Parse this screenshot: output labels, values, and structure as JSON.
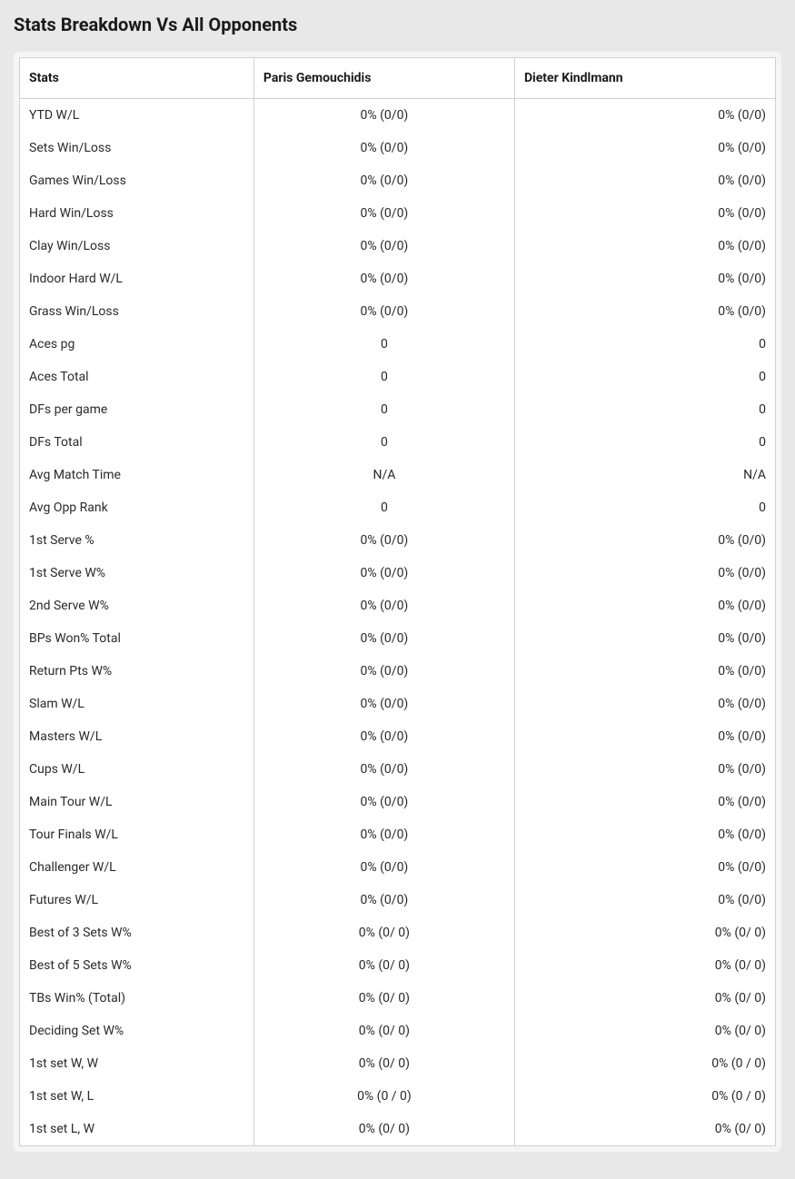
{
  "title": "Stats Breakdown Vs All Opponents",
  "columns": [
    "Stats",
    "Paris Gemouchidis",
    "Dieter Kindlmann"
  ],
  "rows": [
    {
      "stat": "YTD W/L",
      "p1": "0% (0/0)",
      "p2": "0% (0/0)"
    },
    {
      "stat": "Sets Win/Loss",
      "p1": "0% (0/0)",
      "p2": "0% (0/0)"
    },
    {
      "stat": "Games Win/Loss",
      "p1": "0% (0/0)",
      "p2": "0% (0/0)"
    },
    {
      "stat": "Hard Win/Loss",
      "p1": "0% (0/0)",
      "p2": "0% (0/0)"
    },
    {
      "stat": "Clay Win/Loss",
      "p1": "0% (0/0)",
      "p2": "0% (0/0)"
    },
    {
      "stat": "Indoor Hard W/L",
      "p1": "0% (0/0)",
      "p2": "0% (0/0)"
    },
    {
      "stat": "Grass Win/Loss",
      "p1": "0% (0/0)",
      "p2": "0% (0/0)"
    },
    {
      "stat": "Aces pg",
      "p1": "0",
      "p2": "0"
    },
    {
      "stat": "Aces Total",
      "p1": "0",
      "p2": "0"
    },
    {
      "stat": "DFs per game",
      "p1": "0",
      "p2": "0"
    },
    {
      "stat": "DFs Total",
      "p1": "0",
      "p2": "0"
    },
    {
      "stat": "Avg Match Time",
      "p1": "N/A",
      "p2": "N/A"
    },
    {
      "stat": "Avg Opp Rank",
      "p1": "0",
      "p2": "0"
    },
    {
      "stat": "1st Serve %",
      "p1": "0% (0/0)",
      "p2": "0% (0/0)"
    },
    {
      "stat": "1st Serve W%",
      "p1": "0% (0/0)",
      "p2": "0% (0/0)"
    },
    {
      "stat": "2nd Serve W%",
      "p1": "0% (0/0)",
      "p2": "0% (0/0)"
    },
    {
      "stat": "BPs Won% Total",
      "p1": "0% (0/0)",
      "p2": "0% (0/0)"
    },
    {
      "stat": "Return Pts W%",
      "p1": "0% (0/0)",
      "p2": "0% (0/0)"
    },
    {
      "stat": "Slam W/L",
      "p1": "0% (0/0)",
      "p2": "0% (0/0)"
    },
    {
      "stat": "Masters W/L",
      "p1": "0% (0/0)",
      "p2": "0% (0/0)"
    },
    {
      "stat": "Cups W/L",
      "p1": "0% (0/0)",
      "p2": "0% (0/0)"
    },
    {
      "stat": "Main Tour W/L",
      "p1": "0% (0/0)",
      "p2": "0% (0/0)"
    },
    {
      "stat": "Tour Finals W/L",
      "p1": "0% (0/0)",
      "p2": "0% (0/0)"
    },
    {
      "stat": "Challenger W/L",
      "p1": "0% (0/0)",
      "p2": "0% (0/0)"
    },
    {
      "stat": "Futures W/L",
      "p1": "0% (0/0)",
      "p2": "0% (0/0)"
    },
    {
      "stat": "Best of 3 Sets W%",
      "p1": "0% (0/ 0)",
      "p2": "0% (0/ 0)"
    },
    {
      "stat": "Best of 5 Sets W%",
      "p1": "0% (0/ 0)",
      "p2": "0% (0/ 0)"
    },
    {
      "stat": "TBs Win% (Total)",
      "p1": "0% (0/ 0)",
      "p2": "0% (0/ 0)"
    },
    {
      "stat": "Deciding Set W%",
      "p1": "0% (0/ 0)",
      "p2": "0% (0/ 0)"
    },
    {
      "stat": "1st set W, W",
      "p1": "0% (0/ 0)",
      "p2": "0% (0 / 0)"
    },
    {
      "stat": "1st set W, L",
      "p1": "0% (0 / 0)",
      "p2": "0% (0 / 0)"
    },
    {
      "stat": "1st set L, W",
      "p1": "0% (0/ 0)",
      "p2": "0% (0/ 0)"
    }
  ]
}
